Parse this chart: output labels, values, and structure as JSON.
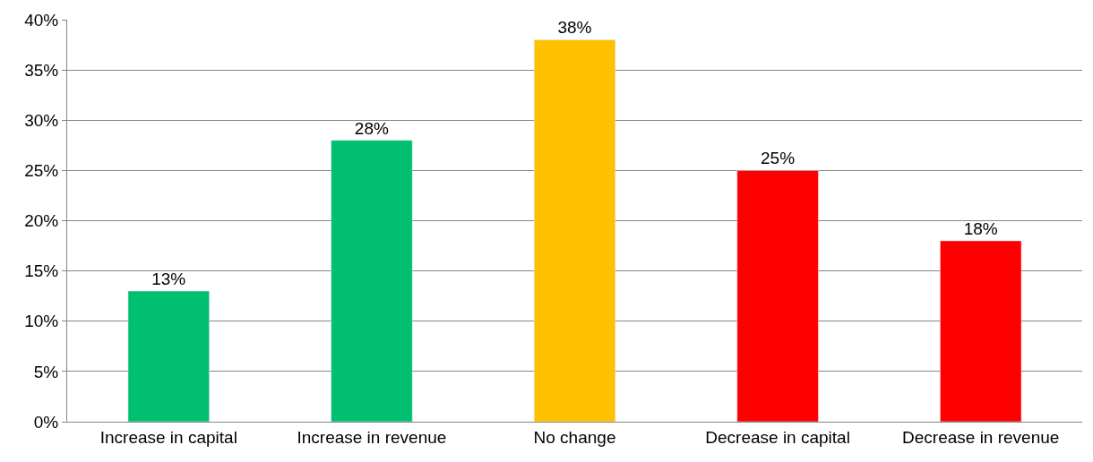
{
  "chart_data": {
    "type": "bar",
    "categories": [
      "Increase in capital",
      "Increase in revenue",
      "No change",
      "Decrease in capital",
      "Decrease in revenue"
    ],
    "values": [
      13,
      28,
      38,
      25,
      18
    ],
    "colors": [
      "#00c06f",
      "#00c06f",
      "#ffc000",
      "#ff0000",
      "#ff0000"
    ],
    "value_labels": [
      "13%",
      "28%",
      "38%",
      "25%",
      "18%"
    ],
    "ylim": [
      0,
      40
    ],
    "yticks": [
      {
        "value": 0,
        "label": "0%"
      },
      {
        "value": 5,
        "label": "5%"
      },
      {
        "value": 10,
        "label": "10%"
      },
      {
        "value": 15,
        "label": "15%"
      },
      {
        "value": 20,
        "label": "20%"
      },
      {
        "value": 25,
        "label": "25%"
      },
      {
        "value": 30,
        "label": "30%"
      },
      {
        "value": 35,
        "label": "35%"
      },
      {
        "value": 40,
        "label": "40%"
      }
    ],
    "grid": "y"
  }
}
